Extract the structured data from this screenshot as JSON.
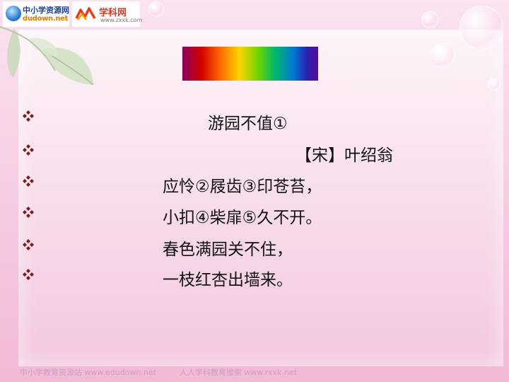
{
  "header": {
    "logo1_title": "中小学资源网",
    "logo1_sub": "dudown.net",
    "logo2_title": "学科网",
    "logo2_sub": "www.zxxk.com"
  },
  "poem": {
    "title": "游园不值①",
    "author": "【宋】叶绍翁",
    "lines": [
      "应怜②屐齿③印苍苔，",
      "小扣④柴扉⑤久不开。",
      "春色满园关不住，",
      "一枝红杏出墙来。"
    ]
  },
  "bullet_icon": "diamond-cluster-icon",
  "footer": {
    "left": "中小学教育资源站 www.edudown.net",
    "right": "人人学科教育搜索 www.rxxk.net"
  },
  "colors": {
    "background": "#f7cfe4",
    "bullet": "#7a1a1a",
    "text": "#111111"
  }
}
